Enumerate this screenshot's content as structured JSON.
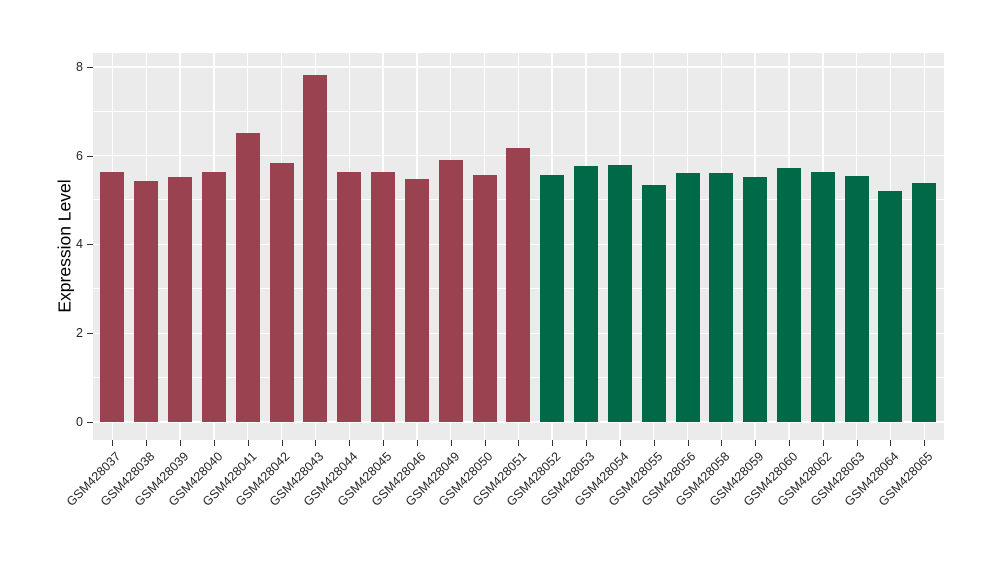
{
  "figure": {
    "background": "#FFFFFF",
    "panel_background": "#EBEBEB",
    "grid_color": "#FFFFFF",
    "tick_color": "#333333",
    "tick_label_color": "#262626"
  },
  "chart_data": {
    "type": "bar",
    "title": "",
    "xlabel": "",
    "ylabel": "Expression Level",
    "ylim": [
      0,
      8.3
    ],
    "yticks": [
      0,
      2,
      4,
      6,
      8
    ],
    "ytick_labels": [
      "0",
      "2",
      "4",
      "6",
      "8"
    ],
    "yminor": [
      1,
      3,
      5,
      7
    ],
    "grid": "on",
    "legend_position": "none",
    "categories": [
      "GSM428037",
      "GSM428038",
      "GSM428039",
      "GSM428040",
      "GSM428041",
      "GSM428042",
      "GSM428043",
      "GSM428044",
      "GSM428045",
      "GSM428046",
      "GSM428049",
      "GSM428050",
      "GSM428051",
      "GSM428052",
      "GSM428053",
      "GSM428054",
      "GSM428055",
      "GSM428056",
      "GSM428058",
      "GSM428059",
      "GSM428060",
      "GSM428062",
      "GSM428063",
      "GSM428064",
      "GSM428065"
    ],
    "values": [
      5.64,
      5.42,
      5.51,
      5.64,
      6.5,
      5.84,
      7.82,
      5.64,
      5.64,
      5.48,
      5.91,
      5.57,
      6.18,
      5.57,
      5.77,
      5.79,
      5.33,
      5.6,
      5.61,
      5.51,
      5.71,
      5.63,
      5.54,
      5.21,
      5.38
    ],
    "groups": [
      "a",
      "a",
      "a",
      "a",
      "a",
      "a",
      "a",
      "a",
      "a",
      "a",
      "a",
      "a",
      "a",
      "b",
      "b",
      "b",
      "b",
      "b",
      "b",
      "b",
      "b",
      "b",
      "b",
      "b",
      "b"
    ],
    "group_colors": {
      "a": "#9A4250",
      "b": "#006A48"
    }
  }
}
